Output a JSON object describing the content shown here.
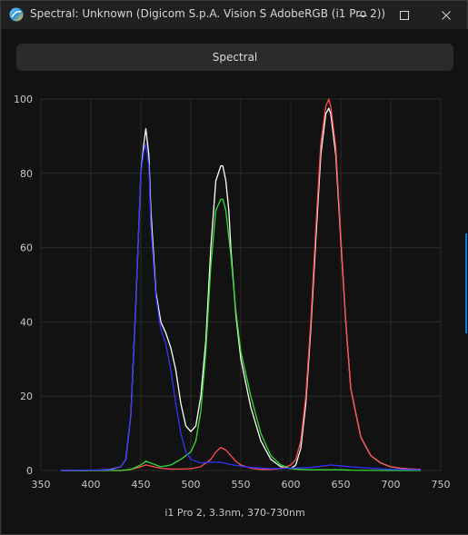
{
  "window": {
    "title": "Spectral: Unknown (Digicom S.p.A. Vision S AdobeRGB (i1 Pro 2))",
    "app_icon": "displaycal-icon",
    "controls": [
      "minimize-icon",
      "maximize-icon",
      "close-icon"
    ]
  },
  "header": {
    "label": "Spectral"
  },
  "caption": "i1 Pro 2, 3.3nm, 370-730nm",
  "colors": {
    "background": "#121212",
    "grid": "#2a2a2a",
    "white": "#ffffff",
    "red": "#ff4d4d",
    "green": "#33dd33",
    "blue": "#3333ff"
  },
  "chart_data": {
    "type": "line",
    "title": "",
    "xlabel": "i1 Pro 2, 3.3nm, 370-730nm",
    "ylabel": "",
    "xlim": [
      350,
      750
    ],
    "ylim": [
      0,
      100
    ],
    "xticks": [
      350,
      400,
      450,
      500,
      550,
      600,
      650,
      700,
      750
    ],
    "yticks": [
      0,
      20,
      40,
      60,
      80,
      100
    ],
    "grid": true,
    "legend": "none",
    "series": [
      {
        "color": "#ffffff",
        "x": [
          370,
          400,
          420,
          430,
          435,
          440,
          445,
          450,
          453,
          455,
          458,
          460,
          465,
          470,
          475,
          480,
          485,
          490,
          495,
          500,
          505,
          510,
          515,
          520,
          525,
          530,
          532,
          535,
          538,
          540,
          545,
          550,
          560,
          570,
          580,
          590,
          600,
          605,
          610,
          615,
          620,
          625,
          630,
          635,
          638,
          640,
          645,
          650,
          655,
          660,
          670,
          680,
          690,
          700,
          710,
          720,
          730
        ],
        "y": [
          0,
          0,
          0.3,
          1,
          3,
          15,
          45,
          80,
          88,
          92,
          85,
          70,
          48,
          40,
          37,
          33,
          27,
          18,
          12,
          10.5,
          12,
          20,
          35,
          60,
          78,
          82,
          82,
          78,
          70,
          60,
          42,
          30,
          17,
          8,
          3,
          1,
          0.5,
          1.5,
          6,
          18,
          38,
          62,
          85,
          96,
          97.5,
          96,
          85,
          62,
          40,
          22,
          9,
          4,
          2,
          1,
          0.6,
          0.4,
          0.3
        ]
      },
      {
        "color": "#ff4d4d",
        "x": [
          370,
          430,
          440,
          450,
          455,
          460,
          470,
          480,
          490,
          500,
          510,
          520,
          525,
          530,
          535,
          540,
          545,
          550,
          560,
          570,
          580,
          590,
          600,
          605,
          610,
          615,
          620,
          625,
          630,
          635,
          638,
          640,
          645,
          650,
          655,
          660,
          670,
          680,
          690,
          700,
          710,
          720,
          730
        ],
        "y": [
          0,
          0,
          0.3,
          1,
          1.5,
          1.2,
          0.6,
          0.4,
          0.4,
          0.5,
          1,
          3,
          5,
          6.2,
          5.5,
          4,
          2.5,
          1.5,
          0.6,
          0.3,
          0.3,
          0.5,
          1.5,
          3,
          8,
          20,
          40,
          65,
          88,
          98,
          100,
          98,
          87,
          63,
          40,
          22,
          9,
          4,
          2,
          1,
          0.6,
          0.4,
          0.3
        ]
      },
      {
        "color": "#33dd33",
        "x": [
          370,
          430,
          440,
          450,
          455,
          460,
          470,
          480,
          490,
          500,
          505,
          510,
          515,
          520,
          525,
          530,
          532,
          535,
          540,
          545,
          550,
          560,
          570,
          580,
          590,
          600,
          610,
          620,
          630,
          640,
          650,
          660,
          700,
          730
        ],
        "y": [
          0,
          0,
          0.3,
          1.5,
          2.5,
          2,
          1,
          1.5,
          3,
          5,
          8,
          16,
          32,
          55,
          70,
          73,
          73,
          70,
          58,
          43,
          32,
          20,
          10,
          4,
          1.5,
          0.5,
          0.3,
          0.2,
          0.2,
          0.2,
          0.2,
          0.1,
          0,
          0
        ]
      },
      {
        "color": "#3333ff",
        "x": [
          370,
          420,
          430,
          435,
          440,
          445,
          450,
          453,
          455,
          458,
          460,
          465,
          470,
          475,
          480,
          485,
          490,
          495,
          500,
          510,
          520,
          530,
          540,
          550,
          560,
          580,
          600,
          620,
          640,
          660,
          680,
          700,
          730
        ],
        "y": [
          0,
          0.2,
          1,
          3,
          15,
          45,
          80,
          86,
          88,
          82,
          66,
          47,
          38,
          34,
          27,
          18,
          10,
          5,
          3,
          2,
          2.3,
          2.2,
          1.6,
          1.2,
          0.8,
          0.5,
          0.6,
          0.8,
          1.5,
          1,
          0.6,
          0.3,
          0.2
        ]
      }
    ]
  }
}
